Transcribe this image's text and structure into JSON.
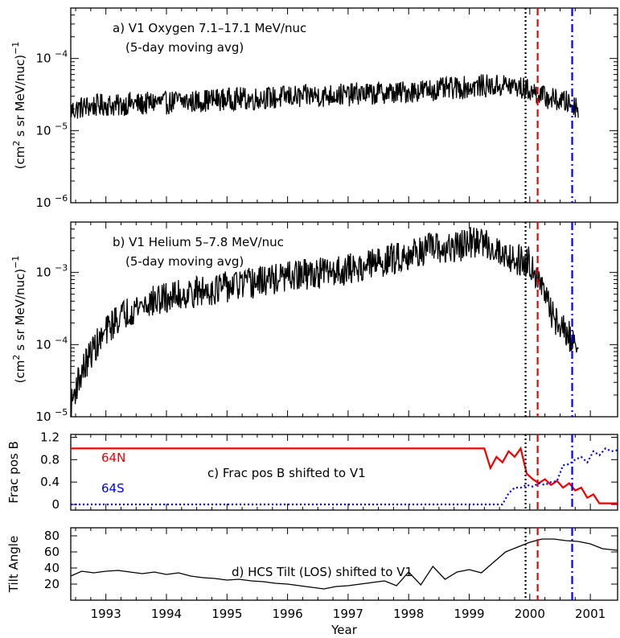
{
  "chart_data": [
    {
      "type": "line",
      "panel": "a",
      "title": "a) V1 Oxygen 7.1–17.1 MeV/nuc",
      "subtitle": "(5-day moving avg)",
      "ylabel_main": "(cm",
      "ylabel_sup": "2",
      "ylabel_rest": " s sr MeV/nuc)",
      "ylabel_exp": "−1",
      "yscale": "log",
      "ylim": [
        1e-06,
        0.0005
      ],
      "yticks": [
        "10",
        "10",
        "10"
      ],
      "yticks_exp": [
        "−6",
        "−5",
        "−4"
      ],
      "xlim": [
        1992.42,
        2001.45
      ],
      "series": [
        {
          "x": [
            1992.42,
            1992.6,
            1992.8,
            1993.0,
            1993.2,
            1993.4,
            1993.6,
            1993.8,
            1994.0,
            1994.2,
            1994.4,
            1994.6,
            1994.8,
            1995.0,
            1995.2,
            1995.4,
            1995.6,
            1995.8,
            1996.0,
            1996.2,
            1996.4,
            1996.6,
            1996.8,
            1997.0,
            1997.2,
            1997.4,
            1997.6,
            1997.8,
            1998.0,
            1998.2,
            1998.4,
            1998.6,
            1998.8,
            1999.0,
            1999.2,
            1999.4,
            1999.6,
            1999.8,
            2000.0,
            2000.2,
            2000.4,
            2000.6,
            2000.8
          ],
          "y": [
            1.9e-05,
            2.1e-05,
            2.2e-05,
            2.3e-05,
            2.2e-05,
            2.4e-05,
            2.3e-05,
            2.5e-05,
            2.4e-05,
            2.6e-05,
            2.5e-05,
            2.6e-05,
            2.7e-05,
            2.7e-05,
            2.8e-05,
            2.7e-05,
            2.9e-05,
            2.8e-05,
            3e-05,
            2.9e-05,
            3.1e-05,
            3e-05,
            3.2e-05,
            3.1e-05,
            3.3e-05,
            3.2e-05,
            3.4e-05,
            3.3e-05,
            3.5e-05,
            3.6e-05,
            3.7e-05,
            3.8e-05,
            3.9e-05,
            4e-05,
            4.2e-05,
            4.1e-05,
            4.3e-05,
            4e-05,
            3.6e-05,
            3e-05,
            2.7e-05,
            2.5e-05,
            2.1e-05
          ]
        }
      ]
    },
    {
      "type": "line",
      "panel": "b",
      "title": "b) V1 Helium 5–7.8 MeV/nuc",
      "subtitle": "(5-day moving avg)",
      "ylabel_main": "(cm",
      "ylabel_sup": "2",
      "ylabel_rest": " s sr MeV/nuc)",
      "ylabel_exp": "−1",
      "yscale": "log",
      "ylim": [
        1e-05,
        0.005
      ],
      "yticks": [
        "10",
        "10",
        "10"
      ],
      "yticks_exp": [
        "−5",
        "−4",
        "−3"
      ],
      "xlim": [
        1992.42,
        2001.45
      ],
      "series": [
        {
          "x": [
            1992.42,
            1992.5,
            1992.6,
            1992.7,
            1992.8,
            1992.9,
            1993.0,
            1993.2,
            1993.4,
            1993.6,
            1993.8,
            1994.0,
            1994.2,
            1994.4,
            1994.6,
            1994.8,
            1995.0,
            1995.2,
            1995.4,
            1995.6,
            1995.8,
            1996.0,
            1996.2,
            1996.4,
            1996.6,
            1996.8,
            1997.0,
            1997.2,
            1997.4,
            1997.6,
            1997.8,
            1998.0,
            1998.2,
            1998.4,
            1998.6,
            1998.8,
            1999.0,
            1999.2,
            1999.4,
            1999.6,
            1999.8,
            2000.0,
            2000.1,
            2000.2,
            2000.3,
            2000.4,
            2000.5,
            2000.6,
            2000.7,
            2000.8
          ],
          "y": [
            1.2e-05,
            2.5e-05,
            4e-05,
            6e-05,
            9e-05,
            0.00011,
            0.00015,
            0.00023,
            0.0003,
            0.00036,
            0.0004,
            0.00044,
            0.00048,
            0.00052,
            0.00055,
            0.00059,
            0.00063,
            0.00067,
            0.0007,
            0.00076,
            0.00081,
            0.00086,
            0.00091,
            0.00096,
            0.001,
            0.00105,
            0.0011,
            0.0012,
            0.0013,
            0.00145,
            0.0016,
            0.0018,
            0.002,
            0.0022,
            0.002,
            0.0023,
            0.0025,
            0.0027,
            0.0022,
            0.0017,
            0.0015,
            0.0014,
            0.001,
            0.0006,
            0.00035,
            0.00024,
            0.00018,
            0.00014,
            0.00012,
            8e-05
          ]
        }
      ]
    },
    {
      "type": "line",
      "panel": "c",
      "title": "c) Frac pos B shifted to V1",
      "ylabel": "Frac pos B",
      "ylim": [
        -0.1,
        1.25
      ],
      "yticks": [
        "0",
        "0.4",
        "0.8",
        "1.2"
      ],
      "xlim": [
        1992.42,
        2001.45
      ],
      "series": [
        {
          "name": "64N",
          "color": "#ee0000",
          "style": "solid",
          "x": [
            1992.42,
            1999.25,
            1999.35,
            1999.45,
            1999.55,
            1999.65,
            1999.75,
            1999.85,
            1999.95,
            2000.05,
            2000.15,
            2000.25,
            2000.35,
            2000.45,
            2000.55,
            2000.65,
            2000.75,
            2000.85,
            2000.95,
            2001.05,
            2001.15,
            2001.45
          ],
          "y": [
            1.0,
            1.0,
            0.65,
            0.85,
            0.75,
            0.95,
            0.85,
            1.0,
            0.55,
            0.45,
            0.38,
            0.45,
            0.35,
            0.42,
            0.3,
            0.38,
            0.25,
            0.3,
            0.12,
            0.18,
            0.02,
            0.02
          ]
        },
        {
          "name": "64S",
          "color": "#0000ee",
          "style": "dotted",
          "x": [
            1992.42,
            1999.55,
            1999.65,
            1999.75,
            1999.85,
            1999.95,
            2000.05,
            2000.15,
            2000.25,
            2000.35,
            2000.45,
            2000.55,
            2000.65,
            2000.75,
            2000.85,
            2000.95,
            2001.05,
            2001.15,
            2001.25,
            2001.35,
            2001.45
          ],
          "y": [
            0.0,
            0.0,
            0.2,
            0.3,
            0.3,
            0.35,
            0.32,
            0.38,
            0.35,
            0.4,
            0.42,
            0.7,
            0.72,
            0.8,
            0.85,
            0.75,
            0.95,
            0.88,
            1.0,
            0.95,
            0.97
          ]
        }
      ],
      "labels": [
        "64N",
        "64S"
      ]
    },
    {
      "type": "line",
      "panel": "d",
      "title": "d) HCS Tilt (LOS) shifted to V1",
      "ylabel": "Tilt Angle",
      "ylim": [
        0,
        90
      ],
      "yticks": [
        "20",
        "40",
        "60",
        "80"
      ],
      "xlim": [
        1992.42,
        2001.45
      ],
      "xlabel": "Year",
      "xticks": [
        "1993",
        "1994",
        "1995",
        "1996",
        "1997",
        "1998",
        "1999",
        "2000",
        "2001"
      ],
      "series": [
        {
          "x": [
            1992.42,
            1992.6,
            1992.8,
            1993.0,
            1993.2,
            1993.4,
            1993.6,
            1993.8,
            1994.0,
            1994.2,
            1994.4,
            1994.6,
            1994.8,
            1995.0,
            1995.2,
            1995.4,
            1995.6,
            1995.8,
            1996.0,
            1996.2,
            1996.4,
            1996.6,
            1996.8,
            1997.0,
            1997.2,
            1997.4,
            1997.6,
            1997.8,
            1998.0,
            1998.2,
            1998.4,
            1998.6,
            1998.8,
            1999.0,
            1999.2,
            1999.4,
            1999.6,
            1999.8,
            2000.0,
            2000.2,
            2000.4,
            2000.6,
            2000.8,
            2001.0,
            2001.2,
            2001.45
          ],
          "y": [
            30,
            36,
            34,
            36,
            37,
            35,
            33,
            35,
            32,
            34,
            30,
            28,
            27,
            25,
            26,
            24,
            23,
            21,
            20,
            18,
            16,
            14,
            17,
            18,
            20,
            22,
            24,
            18,
            35,
            19,
            42,
            26,
            35,
            38,
            34,
            47,
            60,
            66,
            72,
            76,
            76,
            74,
            73,
            70,
            64,
            62
          ]
        }
      ]
    }
  ],
  "vlines": [
    {
      "x": 1999.93,
      "color": "#000000",
      "style": "dotted"
    },
    {
      "x": 2000.13,
      "color": "#ee0000",
      "style": "dashed"
    },
    {
      "x": 2000.7,
      "color": "#0000ee",
      "style": "dashdot"
    }
  ]
}
